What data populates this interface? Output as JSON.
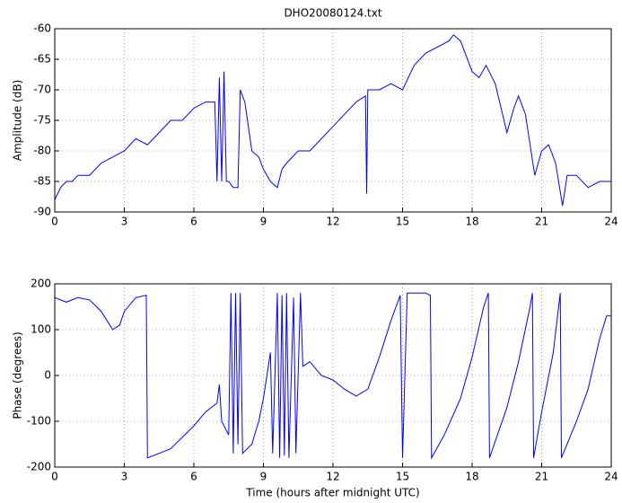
{
  "chart_data": [
    {
      "type": "line",
      "title": "DHO20080124.txt",
      "y_label": "Amplitude (dB)",
      "grid": true,
      "xlim": [
        0,
        24
      ],
      "xticks": [
        0,
        3,
        6,
        9,
        12,
        15,
        18,
        21,
        24
      ],
      "ylim": [
        -90,
        -60
      ],
      "yticks": [
        -90,
        -85,
        -80,
        -75,
        -70,
        -65,
        -60
      ],
      "series": [
        {
          "color": "#0000ff",
          "x": [
            0,
            0.25,
            0.5,
            0.75,
            1,
            1.5,
            2,
            2.5,
            3,
            3.5,
            4,
            4.5,
            5,
            5.5,
            6,
            6.5,
            6.9,
            7.0,
            7.1,
            7.2,
            7.3,
            7.4,
            7.5,
            7.7,
            7.9,
            8.0,
            8.2,
            8.5,
            8.8,
            9,
            9.3,
            9.6,
            9.8,
            10,
            10.5,
            11,
            11.5,
            12,
            12.5,
            13,
            13.4,
            13.45,
            13.5,
            14,
            14.5,
            15,
            15.5,
            16,
            16.5,
            17,
            17.2,
            17.5,
            18,
            18.3,
            18.6,
            19,
            19.5,
            19.8,
            20,
            20.3,
            20.7,
            21,
            21.3,
            21.6,
            21.9,
            22.1,
            22.5,
            23,
            23.5,
            24
          ],
          "values": [
            -88,
            -86,
            -85,
            -85,
            -84,
            -84,
            -82,
            -81,
            -80,
            -78,
            -79,
            -77,
            -75,
            -75,
            -73,
            -72,
            -72,
            -85,
            -68,
            -85,
            -67,
            -85,
            -85,
            -86,
            -86,
            -70,
            -72,
            -80,
            -81,
            -83,
            -85,
            -86,
            -83,
            -82,
            -80,
            -80,
            -78,
            -76,
            -74,
            -72,
            -71,
            -87,
            -70,
            -70,
            -69,
            -70,
            -66,
            -64,
            -63,
            -62,
            -61,
            -62,
            -67,
            -68,
            -66,
            -69,
            -77,
            -73,
            -71,
            -74,
            -84,
            -80,
            -79,
            -82,
            -89,
            -84,
            -84,
            -86,
            -85,
            -85
          ]
        }
      ]
    },
    {
      "type": "line",
      "x_label": "Time (hours after midnight UTC)",
      "y_label": "Phase (degrees)",
      "grid": true,
      "xlim": [
        0,
        24
      ],
      "xticks": [
        0,
        3,
        6,
        9,
        12,
        15,
        18,
        21,
        24
      ],
      "ylim": [
        -200,
        200
      ],
      "yticks": [
        -200,
        -100,
        0,
        100,
        200
      ],
      "series": [
        {
          "color": "#0000ff",
          "x": [
            0,
            0.5,
            1,
            1.5,
            2,
            2.5,
            2.8,
            3,
            3.5,
            3.95,
            4.0,
            4.5,
            5,
            6,
            6.5,
            7,
            7.1,
            7.2,
            7.5,
            7.6,
            7.7,
            7.8,
            7.9,
            8,
            8.1,
            8.5,
            8.8,
            9,
            9.3,
            9.4,
            9.6,
            9.7,
            9.8,
            9.9,
            10,
            10.1,
            10.3,
            10.4,
            10.6,
            10.7,
            11,
            11.5,
            12,
            12.5,
            13,
            13.5,
            14,
            14.5,
            14.9,
            15,
            15.2,
            16,
            16.2,
            16.25,
            16.8,
            17.5,
            18,
            18.5,
            18.7,
            18.75,
            19.5,
            20,
            20.5,
            20.6,
            20.65,
            21,
            21.5,
            21.8,
            21.85,
            22.5,
            23,
            23.5,
            23.8,
            24
          ],
          "values": [
            170,
            160,
            170,
            165,
            140,
            100,
            110,
            140,
            170,
            175,
            -180,
            -170,
            -160,
            -110,
            -80,
            -60,
            -20,
            -100,
            -130,
            180,
            -170,
            180,
            -150,
            180,
            -170,
            -150,
            -100,
            -50,
            50,
            -170,
            180,
            -180,
            175,
            -175,
            180,
            -180,
            170,
            -170,
            180,
            20,
            30,
            0,
            -10,
            -30,
            -45,
            -30,
            40,
            120,
            175,
            -180,
            180,
            180,
            175,
            -180,
            -130,
            -50,
            40,
            150,
            180,
            -180,
            -70,
            30,
            150,
            180,
            -180,
            -80,
            50,
            180,
            -180,
            -100,
            -30,
            80,
            130,
            130
          ]
        }
      ]
    }
  ]
}
